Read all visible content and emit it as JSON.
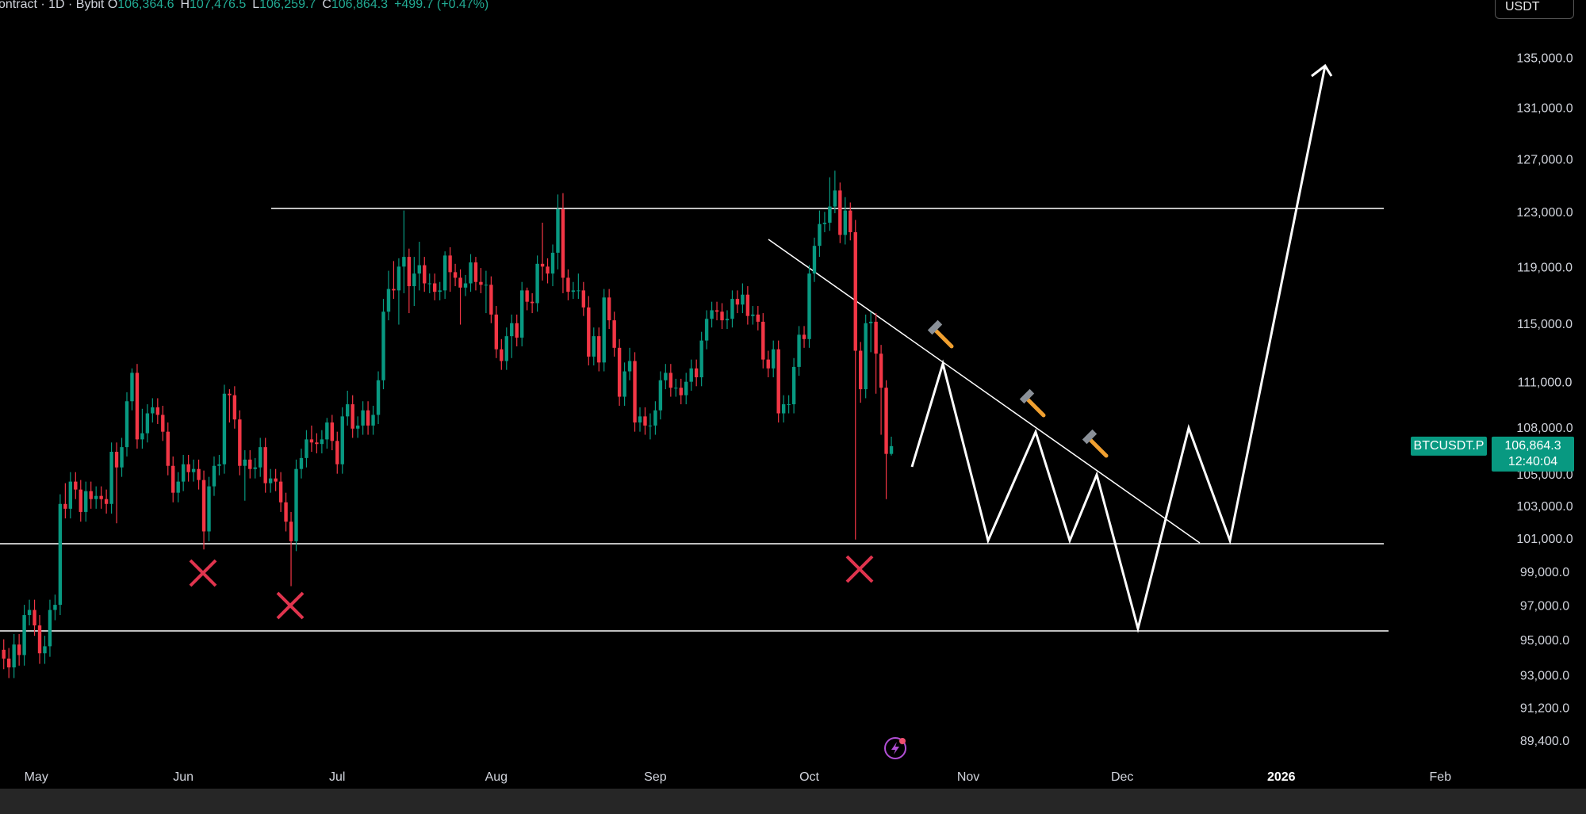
{
  "chart_data": {
    "type": "candlestick",
    "title": "ontract · 1D · Bybit",
    "ohlc": [
      {
        "key": "O",
        "value": "106,364.6"
      },
      {
        "key": "H",
        "value": "107,476.5"
      },
      {
        "key": "L",
        "value": "106,259.7"
      },
      {
        "key": "C",
        "value": "106,864.3"
      }
    ],
    "change": "+499.7 (+0.47%)",
    "currency": "USDT",
    "symbol": "BTCUSDT.P",
    "last_price": {
      "value": 106864.3,
      "label": "106,864.3"
    },
    "countdown": "12:40:04",
    "x_labels": [
      "May",
      "Jun",
      "Jul",
      "Aug",
      "Sep",
      "Oct",
      "Nov",
      "Dec",
      "2026",
      "Feb"
    ],
    "up_color": "#089981",
    "down_color": "#f23645",
    "log_scale": true,
    "grid": false,
    "ylim": [
      86900,
      139900
    ],
    "yticks": [
      {
        "value": 135000,
        "label": "135,000.0"
      },
      {
        "value": 131000,
        "label": "131,000.0"
      },
      {
        "value": 127000,
        "label": "127,000.0"
      },
      {
        "value": 123000,
        "label": "123,000.0"
      },
      {
        "value": 119000,
        "label": "119,000.0"
      },
      {
        "value": 115000,
        "label": "115,000.0"
      },
      {
        "value": 111000,
        "label": "111,000.0"
      },
      {
        "value": 108000,
        "label": "108,000.0"
      },
      {
        "value": 105000,
        "label": "105,000.0"
      },
      {
        "value": 103000,
        "label": "103,000.0"
      },
      {
        "value": 101000,
        "label": "101,000.0"
      },
      {
        "value": 99000,
        "label": "99,000.0"
      },
      {
        "value": 97000,
        "label": "97,000.0"
      },
      {
        "value": 95000,
        "label": "95,000.0"
      },
      {
        "value": 93000,
        "label": "93,000.0"
      },
      {
        "value": 91200,
        "label": "91,200.0"
      },
      {
        "value": 89400,
        "label": "89,400.0"
      }
    ],
    "open": [
      94500,
      94000,
      93500,
      94800,
      94200,
      96500,
      96800,
      95900,
      94300,
      94700,
      96800,
      97100,
      103200,
      102900,
      104600,
      104100,
      102700,
      104000,
      103500,
      103700,
      103500,
      103200,
      106500,
      105500,
      106800,
      109800,
      111700,
      107300,
      107700,
      109000,
      109400,
      108900,
      107800,
      105600,
      103900,
      104600,
      105700,
      105200,
      105400,
      104700,
      101500,
      104300,
      105600,
      105700,
      110300,
      110200,
      108600,
      105600,
      106000,
      105400,
      105500,
      106800,
      104500,
      104800,
      104600,
      103300,
      102100,
      100900,
      105400,
      106100,
      107300,
      107100,
      107000,
      107300,
      108400,
      107200,
      105700,
      108800,
      109600,
      108000,
      108200,
      109200,
      108200,
      108900,
      111200,
      115900,
      117500,
      117400,
      119100,
      119800,
      117700,
      118600,
      119200,
      117900,
      117900,
      117300,
      117400,
      119900,
      118700,
      118300,
      117600,
      117900,
      119400,
      118000,
      117800,
      117800,
      115700,
      113300,
      112500,
      114200,
      115100,
      114100,
      117400,
      116600,
      116500,
      119300,
      119100,
      118600,
      120100,
      123300,
      118300,
      117300,
      117400,
      117400,
      116200,
      112800,
      114200,
      112400,
      116900,
      115300,
      113400,
      110100,
      111800,
      112500,
      108400,
      108800,
      108200,
      108200,
      109200,
      111200,
      111700,
      110700,
      110700,
      110200,
      111100,
      112000,
      111400,
      113900,
      115400,
      116000,
      115900,
      115300,
      115400,
      116800,
      116400,
      117100,
      115600,
      115700,
      115200,
      112600,
      112000,
      113300,
      109000,
      109600,
      109600,
      112100,
      114300,
      114000,
      118600,
      120600,
      122200,
      122300,
      123500,
      124700,
      121400,
      123200,
      121600,
      113200,
      110600,
      115100,
      115200,
      113000,
      110700,
      106364.6
    ],
    "high": [
      95100,
      94600,
      95400,
      95400,
      97100,
      97400,
      97400,
      96500,
      95300,
      97400,
      97700,
      103800,
      104500,
      105200,
      105200,
      104700,
      104600,
      104600,
      104300,
      104300,
      104100,
      107100,
      107100,
      107400,
      110400,
      112000,
      112300,
      109300,
      109600,
      110000,
      110000,
      109500,
      108400,
      106200,
      105200,
      106300,
      106300,
      106000,
      106000,
      105300,
      104900,
      106200,
      106300,
      110900,
      110600,
      110800,
      109200,
      106600,
      106600,
      106100,
      107400,
      107400,
      105400,
      105400,
      105200,
      103900,
      102700,
      106000,
      106700,
      107900,
      108200,
      107700,
      107900,
      108700,
      108900,
      107800,
      109400,
      110500,
      110200,
      108800,
      109800,
      109800,
      109500,
      111800,
      116800,
      118800,
      119500,
      119700,
      123200,
      120400,
      119800,
      120900,
      119800,
      118600,
      118600,
      118000,
      120200,
      120500,
      119300,
      118900,
      118500,
      120000,
      119800,
      119000,
      118800,
      118400,
      116300,
      114000,
      114800,
      115700,
      115700,
      118000,
      117600,
      117200,
      119900,
      122300,
      119700,
      120700,
      124400,
      124500,
      118900,
      118000,
      118600,
      118000,
      117000,
      114800,
      114800,
      117500,
      117500,
      115900,
      114000,
      112400,
      113400,
      113100,
      109400,
      109400,
      109000,
      109800,
      111800,
      112300,
      112300,
      111300,
      111300,
      111700,
      112600,
      112600,
      114500,
      116000,
      116600,
      116600,
      116500,
      116000,
      117400,
      117400,
      117900,
      117700,
      116300,
      116300,
      115800,
      113200,
      113900,
      113900,
      110200,
      110200,
      112700,
      114900,
      114900,
      119200,
      121200,
      123200,
      123100,
      125700,
      126200,
      125300,
      124200,
      123800,
      122500,
      113800,
      115700,
      115900,
      115800,
      113600,
      111200,
      107476.5
    ],
    "low": [
      93400,
      92900,
      92900,
      93600,
      93600,
      95900,
      95300,
      93700,
      93700,
      94100,
      96200,
      96500,
      102300,
      102300,
      103500,
      102100,
      102100,
      102900,
      102900,
      102900,
      102600,
      102600,
      102000,
      104900,
      106200,
      109200,
      106700,
      106700,
      107100,
      108400,
      108300,
      107200,
      105000,
      103300,
      103300,
      104000,
      104600,
      104600,
      104100,
      100400,
      100900,
      103700,
      105000,
      105100,
      108400,
      108000,
      105000,
      103400,
      104800,
      104800,
      104900,
      103900,
      103900,
      104000,
      102700,
      101500,
      98200,
      100300,
      104800,
      105500,
      106500,
      106400,
      106400,
      106700,
      106600,
      105100,
      105100,
      108200,
      107400,
      107400,
      107600,
      107600,
      107600,
      108300,
      110600,
      115300,
      116800,
      115000,
      117200,
      115800,
      116300,
      117400,
      117300,
      117200,
      116700,
      116700,
      116800,
      117300,
      117700,
      115000,
      117000,
      117300,
      117400,
      117200,
      115800,
      115100,
      112700,
      111900,
      111900,
      112700,
      113500,
      113500,
      116000,
      115800,
      115900,
      118100,
      117900,
      117700,
      118900,
      117200,
      116700,
      116800,
      116800,
      115600,
      112200,
      112200,
      111800,
      111800,
      114700,
      112800,
      109500,
      109500,
      111200,
      107800,
      107800,
      107600,
      107300,
      107600,
      108600,
      110600,
      110100,
      110100,
      109600,
      109600,
      110500,
      110800,
      110800,
      113300,
      114800,
      115300,
      114700,
      114700,
      114800,
      115800,
      115800,
      115000,
      115000,
      114600,
      112000,
      111400,
      111400,
      108400,
      108400,
      109000,
      109000,
      111500,
      113400,
      113400,
      118000,
      119800,
      121600,
      121700,
      123000,
      120800,
      120700,
      121000,
      101000,
      109700,
      110000,
      113100,
      110300,
      107600,
      103500,
      106259.7
    ],
    "close": [
      94000,
      93500,
      94800,
      94200,
      96500,
      96800,
      95900,
      94300,
      94700,
      96800,
      97100,
      103200,
      102900,
      104600,
      104100,
      102700,
      104000,
      103500,
      103700,
      103500,
      103200,
      106500,
      105500,
      106800,
      109800,
      111700,
      107300,
      107700,
      109000,
      109400,
      108900,
      107800,
      105600,
      103900,
      104600,
      105700,
      105200,
      105400,
      104700,
      101500,
      104300,
      105600,
      105700,
      110300,
      110200,
      108600,
      105600,
      106000,
      105400,
      105500,
      106800,
      104500,
      104800,
      104600,
      103300,
      102100,
      100900,
      105400,
      106100,
      107300,
      107100,
      107000,
      107300,
      108400,
      107200,
      105700,
      108800,
      109600,
      108000,
      108200,
      109200,
      108200,
      108900,
      111200,
      115900,
      117500,
      117400,
      119100,
      119800,
      117700,
      118600,
      119200,
      117900,
      117900,
      117300,
      117400,
      119900,
      118700,
      118300,
      117600,
      117900,
      119400,
      118000,
      117800,
      117800,
      115700,
      113300,
      112500,
      114200,
      115100,
      114100,
      117400,
      116600,
      116500,
      119300,
      119100,
      118600,
      120100,
      123300,
      118300,
      117300,
      117400,
      117400,
      116200,
      112800,
      114200,
      112400,
      116900,
      115300,
      113400,
      110100,
      111800,
      112500,
      108400,
      108800,
      108200,
      108200,
      109200,
      111200,
      111700,
      110700,
      110700,
      110200,
      111100,
      112000,
      111400,
      113900,
      115400,
      116000,
      115900,
      115300,
      115400,
      116800,
      116400,
      117100,
      115600,
      115700,
      115200,
      112600,
      112000,
      113300,
      109000,
      109600,
      109600,
      112100,
      114300,
      114000,
      118600,
      120600,
      122200,
      122300,
      123500,
      124700,
      121400,
      123200,
      121600,
      113200,
      110600,
      115100,
      115200,
      113000,
      110700,
      106364.6,
      106864.3
    ]
  }
}
